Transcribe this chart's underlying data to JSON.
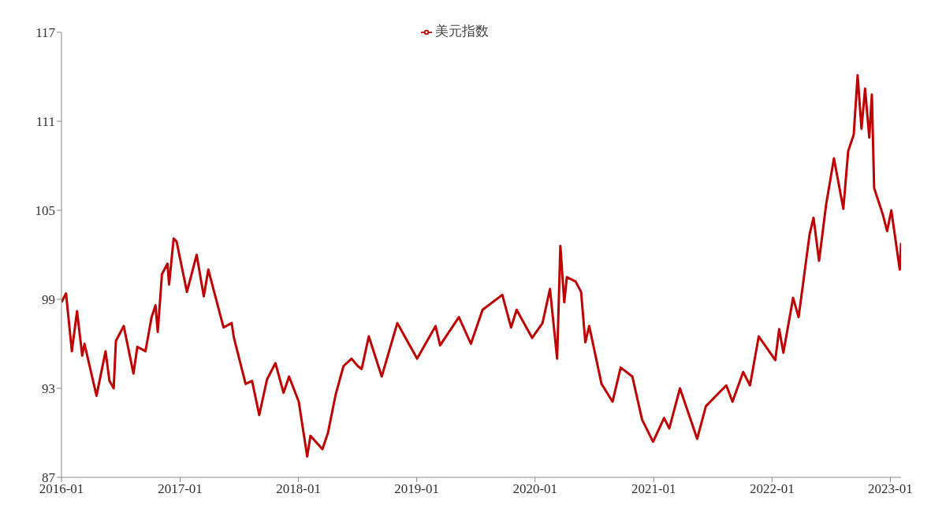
{
  "chart_data": {
    "type": "line",
    "legend": "top",
    "marker": "none",
    "line_style": "solid",
    "ylim": [
      87,
      117
    ],
    "yticks": [
      87,
      93,
      99,
      105,
      111,
      117
    ],
    "xlim": [
      "2016-01-01",
      "2023-02-03"
    ],
    "xticks": [
      "2016-01",
      "2017-01",
      "2018-01",
      "2019-01",
      "2020-01",
      "2021-01",
      "2022-01",
      "2023-01"
    ],
    "series": [
      {
        "name": "美元指数",
        "color": "#c00000",
        "x": [
          "2016-01-01",
          "2016-01-15",
          "2016-02-02",
          "2016-02-18",
          "2016-03-05",
          "2016-03-12",
          "2016-04-18",
          "2016-05-16",
          "2016-05-28",
          "2016-06-10",
          "2016-06-17",
          "2016-07-11",
          "2016-08-10",
          "2016-08-22",
          "2016-09-16",
          "2016-10-05",
          "2016-10-17",
          "2016-10-24",
          "2016-11-06",
          "2016-11-23",
          "2016-11-28",
          "2016-12-12",
          "2016-12-21",
          "2017-01-22",
          "2017-02-21",
          "2017-03-15",
          "2017-03-29",
          "2017-04-28",
          "2017-05-15",
          "2017-06-09",
          "2017-06-16",
          "2017-07-22",
          "2017-08-11",
          "2017-09-02",
          "2017-09-26",
          "2017-10-22",
          "2017-11-16",
          "2017-12-03",
          "2018-01-02",
          "2018-01-28",
          "2018-02-07",
          "2018-03-16",
          "2018-04-02",
          "2018-04-26",
          "2018-05-20",
          "2018-06-14",
          "2018-07-03",
          "2018-07-15",
          "2018-08-06",
          "2018-09-15",
          "2018-11-02",
          "2019-01-02",
          "2019-02-28",
          "2019-03-14",
          "2019-05-11",
          "2019-06-17",
          "2019-07-23",
          "2019-09-22",
          "2019-10-19",
          "2019-11-05",
          "2019-12-23",
          "2020-01-24",
          "2020-02-16",
          "2020-03-09",
          "2020-03-19",
          "2020-03-31",
          "2020-04-08",
          "2020-05-05",
          "2020-05-22",
          "2020-06-04",
          "2020-06-16",
          "2020-07-24",
          "2020-08-27",
          "2020-09-21",
          "2020-10-27",
          "2020-11-26",
          "2020-12-30",
          "2021-02-02",
          "2021-02-18",
          "2021-03-23",
          "2021-05-15",
          "2021-06-11",
          "2021-08-13",
          "2021-09-01",
          "2021-10-04",
          "2021-10-25",
          "2021-11-21",
          "2022-01-11",
          "2022-01-23",
          "2022-02-05",
          "2022-03-07",
          "2022-03-24",
          "2022-04-27",
          "2022-05-09",
          "2022-05-26",
          "2022-06-17",
          "2022-07-11",
          "2022-08-09",
          "2022-08-24",
          "2022-09-10",
          "2022-09-22",
          "2022-10-04",
          "2022-10-15",
          "2022-10-28",
          "2022-11-05",
          "2022-11-12",
          "2022-12-09",
          "2022-12-22",
          "2023-01-04",
          "2023-01-30",
          "2023-02-03"
        ],
        "values": [
          98.8,
          99.4,
          95.5,
          98.2,
          95.2,
          96.0,
          92.5,
          95.5,
          93.5,
          93.0,
          96.2,
          97.2,
          94.0,
          95.8,
          95.5,
          97.8,
          98.6,
          96.8,
          100.7,
          101.4,
          100.0,
          103.1,
          102.9,
          99.5,
          102.0,
          99.2,
          101.0,
          98.5,
          97.1,
          97.4,
          96.4,
          93.3,
          93.5,
          91.2,
          93.6,
          94.7,
          92.7,
          93.8,
          92.1,
          88.4,
          89.8,
          88.9,
          90.0,
          92.6,
          94.5,
          95.0,
          94.5,
          94.3,
          96.5,
          93.8,
          97.4,
          95.0,
          97.2,
          95.9,
          97.8,
          96.0,
          98.3,
          99.3,
          97.1,
          98.3,
          96.4,
          97.4,
          99.7,
          95.0,
          102.6,
          98.8,
          100.5,
          100.2,
          99.5,
          96.1,
          97.2,
          93.3,
          92.1,
          94.4,
          93.8,
          90.9,
          89.4,
          91.0,
          90.3,
          93.0,
          89.6,
          91.8,
          93.2,
          92.1,
          94.1,
          93.2,
          96.5,
          94.9,
          97.0,
          95.4,
          99.1,
          97.8,
          103.4,
          104.5,
          101.6,
          105.4,
          108.5,
          105.1,
          109.0,
          110.1,
          114.1,
          110.5,
          113.2,
          109.9,
          112.8,
          106.5,
          104.7,
          103.6,
          105.0,
          101.0,
          102.8
        ]
      }
    ]
  }
}
